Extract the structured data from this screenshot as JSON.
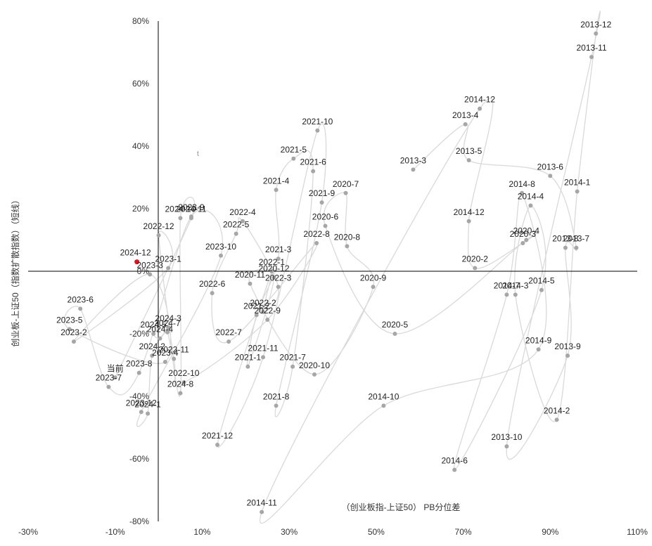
{
  "chart_data": {
    "type": "scatter",
    "title": "",
    "xlabel": "（创业板指-上证50） PB分位差",
    "ylabel": "创业板-上证50（指数扩散指数）（短线）",
    "xlim": [
      -0.3,
      1.1
    ],
    "ylim": [
      -0.8,
      0.8
    ],
    "grid": false,
    "x_ticks": [
      "-30%",
      "-10%",
      "10%",
      "30%",
      "50%",
      "70%",
      "90%",
      "110%"
    ],
    "y_ticks": [
      "80%",
      "60%",
      "40%",
      "20%",
      "0%",
      "-20%",
      "-40%",
      "-60%",
      "-80%"
    ],
    "colors": {
      "point": "#a6a6a6",
      "line": "#d9d9d9",
      "current": "#e0141e",
      "axis": "#000000"
    },
    "points": [
      {
        "label": "2013-3",
        "x": 0.585,
        "y": 0.325
      },
      {
        "label": "2013-4",
        "x": 0.705,
        "y": 0.47
      },
      {
        "label": "2013-5",
        "x": 0.713,
        "y": 0.355
      },
      {
        "label": "2013-6",
        "x": 0.9,
        "y": 0.305
      },
      {
        "label": "2013-7",
        "x": 0.96,
        "y": 0.075
      },
      {
        "label": "2013-8",
        "x": 0.935,
        "y": 0.075
      },
      {
        "label": "2013-9",
        "x": 0.94,
        "y": -0.27
      },
      {
        "label": "2013-10",
        "x": 0.8,
        "y": -0.56
      },
      {
        "label": "2013-11",
        "x": 0.995,
        "y": 0.685
      },
      {
        "label": "2013-12",
        "x": 1.005,
        "y": 0.76
      },
      {
        "label": "2014-1",
        "x": 0.962,
        "y": 0.255
      },
      {
        "label": "2014-2",
        "x": 0.915,
        "y": -0.475
      },
      {
        "label": "2014-3",
        "x": 0.82,
        "y": -0.075
      },
      {
        "label": "2014-4",
        "x": 0.855,
        "y": 0.21
      },
      {
        "label": "2014-5",
        "x": 0.88,
        "y": -0.06
      },
      {
        "label": "2014-6",
        "x": 0.68,
        "y": -0.635
      },
      {
        "label": "2014-7",
        "x": 0.8,
        "y": -0.075
      },
      {
        "label": "2014-8",
        "x": 0.835,
        "y": 0.25
      },
      {
        "label": "2014-9",
        "x": 0.873,
        "y": -0.25
      },
      {
        "label": "2014-10",
        "x": 0.517,
        "y": -0.43
      },
      {
        "label": "2014-11",
        "x": 0.237,
        "y": -0.77
      },
      {
        "label": "2014-12",
        "x": 0.738,
        "y": 0.52
      },
      {
        "label": "2014-12",
        "x": 0.713,
        "y": 0.16
      },
      {
        "label": "2020-2",
        "x": 0.727,
        "y": 0.01
      },
      {
        "label": "2020-3",
        "x": 0.837,
        "y": 0.09
      },
      {
        "label": "2020-4",
        "x": 0.845,
        "y": 0.1
      },
      {
        "label": "2020-5",
        "x": 0.543,
        "y": -0.2
      },
      {
        "label": "2020-6",
        "x": 0.383,
        "y": 0.145
      },
      {
        "label": "2020-7",
        "x": 0.43,
        "y": 0.25
      },
      {
        "label": "2020-8",
        "x": 0.433,
        "y": 0.08
      },
      {
        "label": "2020-9",
        "x": 0.493,
        "y": -0.05
      },
      {
        "label": "2020-10",
        "x": 0.358,
        "y": -0.33
      },
      {
        "label": "2020-11",
        "x": 0.21,
        "y": -0.04
      },
      {
        "label": "2020-12",
        "x": 0.265,
        "y": -0.02
      },
      {
        "label": "2021-1",
        "x": 0.205,
        "y": -0.305
      },
      {
        "label": "2021-2",
        "x": 0.225,
        "y": -0.14
      },
      {
        "label": "2021-3",
        "x": 0.275,
        "y": 0.04
      },
      {
        "label": "2021-4",
        "x": 0.27,
        "y": 0.26
      },
      {
        "label": "2021-5",
        "x": 0.31,
        "y": 0.36
      },
      {
        "label": "2021-6",
        "x": 0.355,
        "y": 0.32
      },
      {
        "label": "2021-7",
        "x": 0.308,
        "y": -0.305
      },
      {
        "label": "2021-8",
        "x": 0.27,
        "y": -0.43
      },
      {
        "label": "2021-9",
        "x": 0.375,
        "y": 0.22
      },
      {
        "label": "2021-10",
        "x": 0.365,
        "y": 0.45
      },
      {
        "label": "2021-11",
        "x": 0.24,
        "y": -0.275
      },
      {
        "label": "2021-12",
        "x": 0.135,
        "y": -0.555
      },
      {
        "label": "2022-1",
        "x": 0.26,
        "y": 0.0
      },
      {
        "label": "2022-2",
        "x": 0.24,
        "y": -0.13
      },
      {
        "label": "2022-3",
        "x": 0.275,
        "y": -0.05
      },
      {
        "label": "2022-4",
        "x": 0.193,
        "y": 0.16
      },
      {
        "label": "2022-5",
        "x": 0.178,
        "y": 0.12
      },
      {
        "label": "2022-6",
        "x": 0.123,
        "y": -0.07
      },
      {
        "label": "2022-7",
        "x": 0.161,
        "y": -0.225
      },
      {
        "label": "2022-8",
        "x": 0.363,
        "y": 0.09
      },
      {
        "label": "2022-9",
        "x": 0.25,
        "y": -0.155
      },
      {
        "label": "2022-10",
        "x": 0.058,
        "y": -0.355
      },
      {
        "label": "2022-11",
        "x": 0.035,
        "y": -0.28
      },
      {
        "label": "2022-12",
        "x": 0.0,
        "y": 0.115
      },
      {
        "label": "2023-1",
        "x": 0.022,
        "y": 0.01
      },
      {
        "label": "2023-2",
        "x": -0.195,
        "y": -0.225
      },
      {
        "label": "2023-3",
        "x": -0.02,
        "y": -0.01
      },
      {
        "label": "2023-4",
        "x": 0.015,
        "y": -0.29
      },
      {
        "label": "2023-5",
        "x": -0.205,
        "y": -0.185
      },
      {
        "label": "2023-6",
        "x": -0.18,
        "y": -0.12
      },
      {
        "label": "2023-7",
        "x": -0.115,
        "y": -0.37
      },
      {
        "label": "2023-8",
        "x": -0.045,
        "y": -0.325
      },
      {
        "label": "2023-9",
        "x": 0.075,
        "y": 0.175
      },
      {
        "label": "2023-10",
        "x": 0.143,
        "y": 0.05
      },
      {
        "label": "2023-12",
        "x": -0.04,
        "y": -0.45
      },
      {
        "label": "2024-1",
        "x": -0.025,
        "y": -0.455
      },
      {
        "label": "2024-2",
        "x": -0.015,
        "y": -0.27
      },
      {
        "label": "2024-3",
        "x": 0.022,
        "y": -0.18
      },
      {
        "label": "2024-4",
        "x": 0.003,
        "y": -0.215
      },
      {
        "label": "2024-5",
        "x": -0.012,
        "y": -0.2
      },
      {
        "label": "2024-7",
        "x": 0.02,
        "y": -0.195
      },
      {
        "label": "2024-8",
        "x": 0.05,
        "y": -0.39
      },
      {
        "label": "2024-10",
        "x": 0.05,
        "y": 0.17
      },
      {
        "label": "2024-11",
        "x": 0.075,
        "y": 0.17
      },
      {
        "label": "2024-12",
        "x": -0.05,
        "y": 0.03
      },
      {
        "label": "当前",
        "x": -0.1,
        "y": -0.34
      }
    ],
    "current": {
      "label": "2024-12",
      "x": -0.05,
      "y": 0.03
    },
    "stray_mark": "t"
  }
}
